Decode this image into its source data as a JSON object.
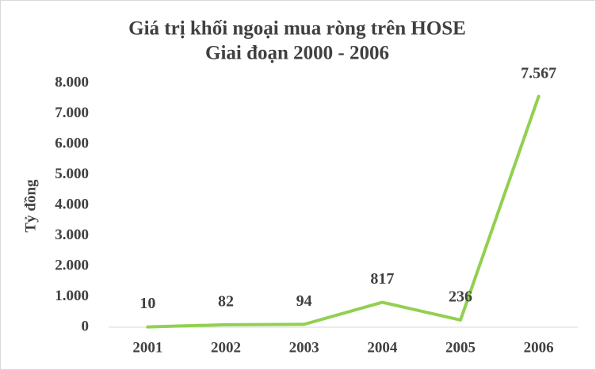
{
  "chart_data": {
    "type": "line",
    "title": "Giá trị khối ngoại mua ròng trên HOSE",
    "subtitle": "Giai đoạn 2000 - 2006",
    "y_label": "Tỷ đồng",
    "categories": [
      "2001",
      "2002",
      "2003",
      "2004",
      "2005",
      "2006"
    ],
    "values": [
      10,
      82,
      94,
      817,
      236,
      7567
    ],
    "value_labels": [
      "10",
      "82",
      "94",
      "817",
      "236",
      "7.567"
    ],
    "color": "#92d050",
    "ylim": [
      0,
      8000
    ],
    "yticks": [
      0,
      {
        "value": 1000,
        "label": "1.000"
      },
      {
        "value": 2000,
        "label": "2.000"
      },
      {
        "value": 3000,
        "label": "3.000"
      },
      {
        "value": 4000,
        "label": "4.000"
      },
      {
        "value": 5000,
        "label": "5.000"
      },
      {
        "value": 6000,
        "label": "6.000"
      },
      {
        "value": 7000,
        "label": "7.000"
      },
      {
        "value": 8000,
        "label": "8.000"
      }
    ],
    "grid": false
  }
}
